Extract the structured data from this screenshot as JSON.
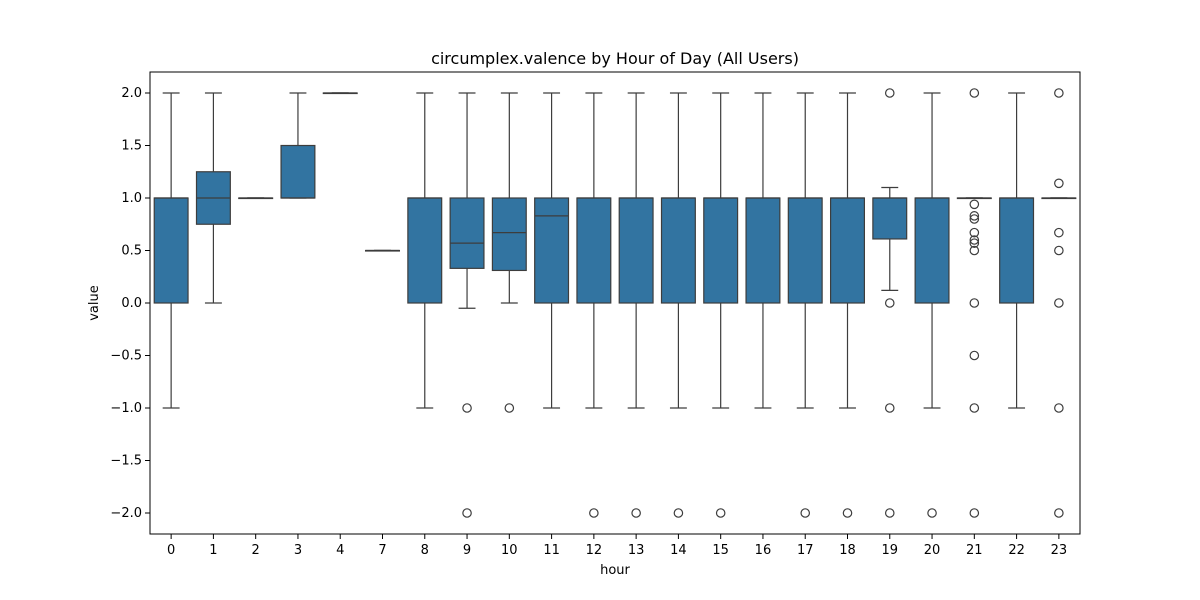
{
  "chart_data": {
    "type": "box",
    "title": "circumplex.valence by Hour of Day (All Users)",
    "xlabel": "hour",
    "ylabel": "value",
    "ylim": [
      -2.2,
      2.2
    ],
    "yticks": [
      "2.0",
      "1.5",
      "1.0",
      "0.5",
      "0.0",
      "−0.5",
      "−1.0",
      "−1.5",
      "−2.0"
    ],
    "ytick_values": [
      2.0,
      1.5,
      1.0,
      0.5,
      0.0,
      -0.5,
      -1.0,
      -1.5,
      -2.0
    ],
    "grid": false,
    "colors": {
      "box": "#3274a1",
      "line": "#3d3d3d",
      "axis": "#000000"
    },
    "categories": [
      "0",
      "1",
      "2",
      "3",
      "4",
      "7",
      "8",
      "9",
      "10",
      "11",
      "12",
      "13",
      "14",
      "15",
      "16",
      "17",
      "18",
      "19",
      "20",
      "21",
      "22",
      "23"
    ],
    "boxes": [
      {
        "hour": "0",
        "q1": 0.0,
        "median": 1.0,
        "q3": 1.0,
        "whislo": -1.0,
        "whishi": 2.0,
        "outliers": []
      },
      {
        "hour": "1",
        "q1": 0.75,
        "median": 1.0,
        "q3": 1.25,
        "whislo": 0.0,
        "whishi": 2.0,
        "outliers": []
      },
      {
        "hour": "2",
        "q1": 1.0,
        "median": 1.0,
        "q3": 1.0,
        "whislo": 1.0,
        "whishi": 1.0,
        "outliers": []
      },
      {
        "hour": "3",
        "q1": 1.0,
        "median": 1.0,
        "q3": 1.5,
        "whislo": 1.0,
        "whishi": 2.0,
        "outliers": []
      },
      {
        "hour": "4",
        "q1": 2.0,
        "median": 2.0,
        "q3": 2.0,
        "whislo": 2.0,
        "whishi": 2.0,
        "outliers": []
      },
      {
        "hour": "7",
        "q1": 0.5,
        "median": 0.5,
        "q3": 0.5,
        "whislo": 0.5,
        "whishi": 0.5,
        "outliers": []
      },
      {
        "hour": "8",
        "q1": 0.0,
        "median": 1.0,
        "q3": 1.0,
        "whislo": -1.0,
        "whishi": 2.0,
        "outliers": []
      },
      {
        "hour": "9",
        "q1": 0.33,
        "median": 0.57,
        "q3": 1.0,
        "whislo": -0.05,
        "whishi": 2.0,
        "outliers": [
          -1.0,
          -2.0
        ]
      },
      {
        "hour": "10",
        "q1": 0.31,
        "median": 0.67,
        "q3": 1.0,
        "whislo": 0.0,
        "whishi": 2.0,
        "outliers": [
          -1.0
        ]
      },
      {
        "hour": "11",
        "q1": 0.0,
        "median": 0.83,
        "q3": 1.0,
        "whislo": -1.0,
        "whishi": 2.0,
        "outliers": []
      },
      {
        "hour": "12",
        "q1": 0.0,
        "median": 1.0,
        "q3": 1.0,
        "whislo": -1.0,
        "whishi": 2.0,
        "outliers": [
          -2.0
        ]
      },
      {
        "hour": "13",
        "q1": 0.0,
        "median": 1.0,
        "q3": 1.0,
        "whislo": -1.0,
        "whishi": 2.0,
        "outliers": [
          -2.0
        ]
      },
      {
        "hour": "14",
        "q1": 0.0,
        "median": 1.0,
        "q3": 1.0,
        "whislo": -1.0,
        "whishi": 2.0,
        "outliers": [
          -2.0
        ]
      },
      {
        "hour": "15",
        "q1": 0.0,
        "median": 1.0,
        "q3": 1.0,
        "whislo": -1.0,
        "whishi": 2.0,
        "outliers": [
          -2.0
        ]
      },
      {
        "hour": "16",
        "q1": 0.0,
        "median": 1.0,
        "q3": 1.0,
        "whislo": -1.0,
        "whishi": 2.0,
        "outliers": []
      },
      {
        "hour": "17",
        "q1": 0.0,
        "median": 1.0,
        "q3": 1.0,
        "whislo": -1.0,
        "whishi": 2.0,
        "outliers": [
          -2.0
        ]
      },
      {
        "hour": "18",
        "q1": 0.0,
        "median": 1.0,
        "q3": 1.0,
        "whislo": -1.0,
        "whishi": 2.0,
        "outliers": [
          -2.0
        ]
      },
      {
        "hour": "19",
        "q1": 0.61,
        "median": 1.0,
        "q3": 1.0,
        "whislo": 0.12,
        "whishi": 1.1,
        "outliers": [
          2.0,
          0.0,
          -1.0,
          -2.0
        ]
      },
      {
        "hour": "20",
        "q1": 0.0,
        "median": 1.0,
        "q3": 1.0,
        "whislo": -1.0,
        "whishi": 2.0,
        "outliers": [
          -2.0
        ]
      },
      {
        "hour": "21",
        "q1": 1.0,
        "median": 1.0,
        "q3": 1.0,
        "whislo": 1.0,
        "whishi": 1.0,
        "outliers": [
          2.0,
          0.94,
          0.83,
          0.8,
          0.67,
          0.6,
          0.57,
          0.5,
          0.0,
          -0.5,
          -1.0,
          -2.0
        ]
      },
      {
        "hour": "22",
        "q1": 0.0,
        "median": 1.0,
        "q3": 1.0,
        "whislo": -1.0,
        "whishi": 2.0,
        "outliers": []
      },
      {
        "hour": "23",
        "q1": 1.0,
        "median": 1.0,
        "q3": 1.0,
        "whislo": 1.0,
        "whishi": 1.0,
        "outliers": [
          2.0,
          1.14,
          0.67,
          0.5,
          0.0,
          -1.0,
          -2.0
        ]
      }
    ]
  }
}
